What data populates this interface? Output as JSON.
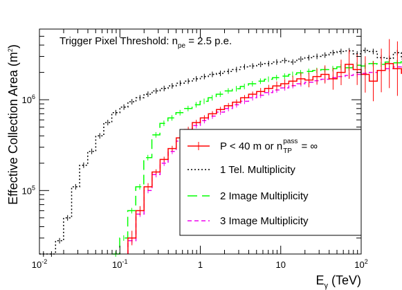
{
  "chart_data": {
    "type": "line",
    "title": "",
    "annotation": {
      "prefix": "Trigger Pixel Threshold: n",
      "sub": "pe",
      "suffix": " = 2.5 p.e."
    },
    "xlabel": {
      "main": "E",
      "sub": "γ",
      "rest": " (TeV)"
    },
    "ylabel": {
      "main": "Effective Collection Area (m",
      "sup": "2",
      "end": ")"
    },
    "x_scale": "log",
    "y_scale": "log",
    "xlim": [
      0.01,
      100
    ],
    "ylim": [
      20000,
      6000000
    ],
    "x_ticks": [
      {
        "value": 0.01,
        "base": "10",
        "exp": "-2"
      },
      {
        "value": 0.1,
        "base": "10",
        "exp": "-1"
      },
      {
        "value": 1,
        "base": "1",
        "exp": ""
      },
      {
        "value": 10,
        "base": "10",
        "exp": ""
      },
      {
        "value": 100,
        "base": "10",
        "exp": "2"
      }
    ],
    "y_ticks": [
      {
        "value": 100000,
        "base": "10",
        "exp": "5"
      },
      {
        "value": 1000000,
        "base": "10",
        "exp": "6"
      }
    ],
    "legend": {
      "placement": "center-right",
      "entries": [
        {
          "series": 0,
          "prefix": "P < 40 m or n",
          "sub": "TP",
          "sup": "pass",
          "suffix": " = ∞"
        },
        {
          "series": 1,
          "prefix": "1 Tel. Multiplicity",
          "sub": "",
          "sup": "",
          "suffix": ""
        },
        {
          "series": 2,
          "prefix": "2 Image Multiplicity",
          "sub": "",
          "sup": "",
          "suffix": ""
        },
        {
          "series": 3,
          "prefix": "3 Image Multiplicity",
          "sub": "",
          "sup": "",
          "suffix": ""
        }
      ]
    },
    "series": [
      {
        "color": "#ff0000",
        "dash": "",
        "width": 1.5,
        "x_start": 0.126,
        "values": [
          30000,
          60000,
          110000,
          160000,
          220000,
          290000,
          380000,
          470000,
          560000,
          630000,
          700000,
          780000,
          860000,
          940000,
          1050000,
          1150000,
          1230000,
          1330000,
          1420000,
          1500000,
          1600000,
          1700000,
          1650000,
          1800000,
          1900000,
          1700000,
          2000000,
          2450000,
          2150000,
          1900000,
          1600000,
          2100000,
          2500000,
          2200000,
          1950000,
          2700000,
          3500000,
          3800000
        ],
        "errors": [
          [
            0.08,
            0.08
          ],
          [
            0.05,
            0.05
          ],
          [
            0.04,
            0.04
          ],
          [
            0.03,
            0.03
          ],
          [
            0.03,
            0.03
          ],
          [
            0.03,
            0.03
          ],
          [
            0.03,
            0.03
          ],
          [
            0.03,
            0.03
          ],
          [
            0.03,
            0.03
          ],
          [
            0.03,
            0.03
          ],
          [
            0.03,
            0.03
          ],
          [
            0.03,
            0.03
          ],
          [
            0.03,
            0.03
          ],
          [
            0.03,
            0.03
          ],
          [
            0.03,
            0.03
          ],
          [
            0.03,
            0.03
          ],
          [
            0.04,
            0.04
          ],
          [
            0.04,
            0.04
          ],
          [
            0.05,
            0.05
          ],
          [
            0.05,
            0.05
          ],
          [
            0.06,
            0.06
          ],
          [
            0.07,
            0.07
          ],
          [
            0.08,
            0.08
          ],
          [
            0.09,
            0.09
          ],
          [
            0.1,
            0.1
          ],
          [
            0.12,
            0.12
          ],
          [
            0.14,
            0.14
          ],
          [
            0.16,
            0.16
          ],
          [
            0.17,
            0.17
          ],
          [
            0.2,
            0.2
          ],
          [
            0.22,
            0.22
          ],
          [
            0.24,
            0.24
          ],
          [
            0.27,
            0.27
          ],
          [
            0.3,
            0.3
          ],
          [
            0.34,
            0.34
          ],
          [
            0.38,
            0.38
          ],
          [
            0.45,
            0.6
          ],
          [
            0.5,
            0.6
          ]
        ]
      },
      {
        "color": "#000000",
        "dash": "2,3",
        "width": 1.5,
        "x_start": 0.01,
        "values": [
          20000,
          20000,
          28000,
          50000,
          110000,
          190000,
          270000,
          400000,
          560000,
          720000,
          830000,
          950000,
          1050000,
          1150000,
          1250000,
          1330000,
          1420000,
          1520000,
          1600000,
          1700000,
          1800000,
          1900000,
          1950000,
          2050000,
          2150000,
          2300000,
          2350000,
          2450000,
          2500000,
          2600000,
          2700000,
          2600000,
          2800000,
          2900000,
          3000000,
          3100000,
          3300000,
          3400000,
          3450000,
          3200000,
          3500000,
          3400000,
          2900000,
          2850000,
          3300000,
          2800000,
          2700000,
          3800000,
          5500000
        ],
        "errors": []
      },
      {
        "color": "#00ff00",
        "dash": "14,7",
        "width": 1.5,
        "x_start": 0.079,
        "values": [
          20000,
          30000,
          60000,
          110000,
          230000,
          410000,
          550000,
          630000,
          720000,
          800000,
          880000,
          960000,
          1050000,
          1150000,
          1250000,
          1320000,
          1400000,
          1500000,
          1600000,
          1680000,
          1750000,
          1820000,
          1900000,
          1980000,
          2050000,
          2100000,
          2150000,
          2200000,
          2300000,
          2250000,
          2400000,
          2350000,
          2500000,
          2450000,
          2600000,
          2550000,
          2700000,
          2650000,
          2800000,
          2900000,
          3000000,
          3400000,
          3600000
        ],
        "errors": []
      },
      {
        "color": "#ee00ee",
        "dash": "6,4",
        "width": 1.5,
        "x_start": 0.126,
        "values": [
          28000,
          55000,
          100000,
          150000,
          200000,
          270000,
          350000,
          440000,
          520000,
          590000,
          660000,
          730000,
          800000,
          880000,
          960000,
          1050000,
          1120000,
          1200000,
          1280000,
          1350000,
          1430000,
          1500000,
          1560000,
          1620000,
          1680000,
          1750000,
          1800000,
          1850000,
          1900000,
          1950000,
          2000000,
          2100000,
          2200000,
          2300000,
          2400000,
          2500000,
          2650000,
          2800000
        ],
        "errors": []
      }
    ]
  }
}
